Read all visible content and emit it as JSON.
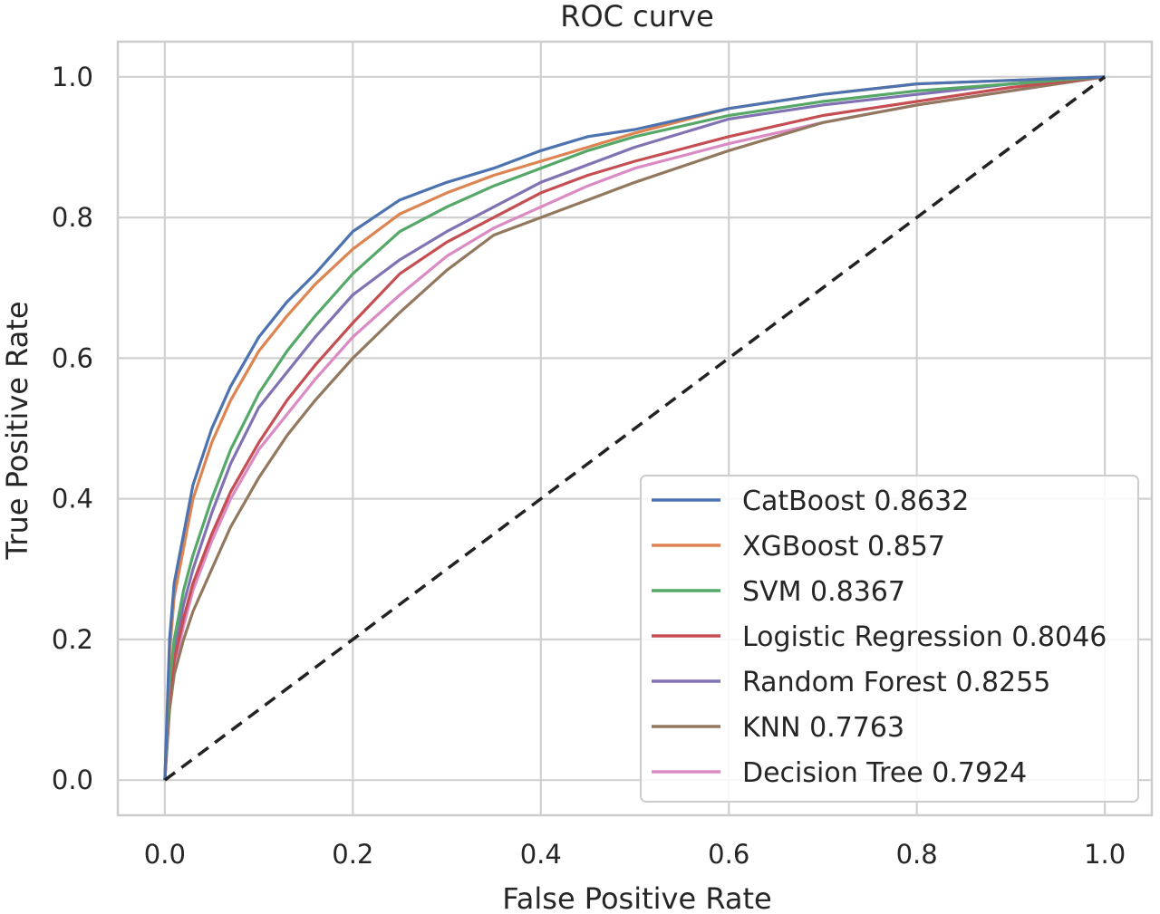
{
  "chart_data": {
    "type": "line",
    "title": "ROC curve",
    "xlabel": "False Positive Rate",
    "ylabel": "True Positive Rate",
    "xlim": [
      -0.05,
      1.05
    ],
    "ylim": [
      -0.05,
      1.05
    ],
    "xticks": [
      0.0,
      0.2,
      0.4,
      0.6,
      0.8,
      1.0
    ],
    "yticks": [
      0.0,
      0.2,
      0.4,
      0.6,
      0.8,
      1.0
    ],
    "xtick_labels": [
      "0.0",
      "0.2",
      "0.4",
      "0.6",
      "0.8",
      "1.0"
    ],
    "ytick_labels": [
      "0.0",
      "0.2",
      "0.4",
      "0.6",
      "0.8",
      "1.0"
    ],
    "grid": true,
    "legend_position": "lower-right",
    "series": [
      {
        "name": "CatBoost 0.8632",
        "color": "#4c72b0",
        "x": [
          0,
          0.005,
          0.01,
          0.02,
          0.03,
          0.05,
          0.07,
          0.1,
          0.13,
          0.16,
          0.2,
          0.25,
          0.3,
          0.35,
          0.4,
          0.45,
          0.5,
          0.6,
          0.7,
          0.8,
          0.9,
          1.0
        ],
        "y": [
          0,
          0.2,
          0.28,
          0.35,
          0.42,
          0.5,
          0.56,
          0.63,
          0.68,
          0.72,
          0.78,
          0.825,
          0.85,
          0.87,
          0.895,
          0.915,
          0.925,
          0.955,
          0.975,
          0.99,
          0.995,
          1.0
        ]
      },
      {
        "name": "XGBoost 0.857",
        "color": "#dd8452",
        "x": [
          0,
          0.005,
          0.01,
          0.02,
          0.03,
          0.05,
          0.07,
          0.1,
          0.13,
          0.16,
          0.2,
          0.25,
          0.3,
          0.35,
          0.4,
          0.45,
          0.5,
          0.6,
          0.7,
          0.8,
          0.9,
          1.0
        ],
        "y": [
          0,
          0.18,
          0.26,
          0.33,
          0.4,
          0.48,
          0.54,
          0.61,
          0.66,
          0.705,
          0.755,
          0.805,
          0.835,
          0.86,
          0.88,
          0.9,
          0.92,
          0.955,
          0.975,
          0.99,
          0.995,
          1.0
        ]
      },
      {
        "name": "SVM 0.8367",
        "color": "#55a868",
        "x": [
          0,
          0.005,
          0.01,
          0.02,
          0.03,
          0.05,
          0.07,
          0.1,
          0.13,
          0.16,
          0.2,
          0.25,
          0.3,
          0.35,
          0.4,
          0.45,
          0.5,
          0.6,
          0.7,
          0.8,
          0.9,
          1.0
        ],
        "y": [
          0,
          0.14,
          0.2,
          0.27,
          0.32,
          0.4,
          0.47,
          0.55,
          0.61,
          0.66,
          0.72,
          0.78,
          0.815,
          0.845,
          0.87,
          0.895,
          0.915,
          0.945,
          0.965,
          0.98,
          0.99,
          1.0
        ]
      },
      {
        "name": "Logistic Regression 0.8046",
        "color": "#c44e52",
        "x": [
          0,
          0.005,
          0.01,
          0.02,
          0.03,
          0.05,
          0.07,
          0.1,
          0.13,
          0.16,
          0.2,
          0.25,
          0.3,
          0.35,
          0.4,
          0.45,
          0.5,
          0.6,
          0.7,
          0.8,
          0.9,
          1.0
        ],
        "y": [
          0,
          0.12,
          0.17,
          0.23,
          0.28,
          0.35,
          0.41,
          0.48,
          0.54,
          0.59,
          0.65,
          0.72,
          0.765,
          0.8,
          0.835,
          0.86,
          0.88,
          0.915,
          0.945,
          0.965,
          0.985,
          1.0
        ]
      },
      {
        "name": "Random Forest 0.8255",
        "color": "#8172b3",
        "x": [
          0,
          0.005,
          0.01,
          0.02,
          0.03,
          0.05,
          0.07,
          0.1,
          0.13,
          0.16,
          0.2,
          0.25,
          0.3,
          0.35,
          0.4,
          0.45,
          0.5,
          0.6,
          0.7,
          0.8,
          0.9,
          1.0
        ],
        "y": [
          0,
          0.13,
          0.18,
          0.25,
          0.3,
          0.38,
          0.45,
          0.53,
          0.58,
          0.63,
          0.69,
          0.74,
          0.78,
          0.815,
          0.85,
          0.875,
          0.9,
          0.94,
          0.96,
          0.975,
          0.99,
          1.0
        ]
      },
      {
        "name": "KNN 0.7763",
        "color": "#937860",
        "x": [
          0,
          0.005,
          0.01,
          0.02,
          0.03,
          0.05,
          0.07,
          0.1,
          0.13,
          0.16,
          0.2,
          0.25,
          0.3,
          0.35,
          0.4,
          0.45,
          0.5,
          0.6,
          0.7,
          0.8,
          0.9,
          1.0
        ],
        "y": [
          0,
          0.1,
          0.15,
          0.2,
          0.24,
          0.3,
          0.36,
          0.43,
          0.49,
          0.54,
          0.6,
          0.665,
          0.725,
          0.775,
          0.8,
          0.825,
          0.85,
          0.895,
          0.935,
          0.96,
          0.98,
          1.0
        ]
      },
      {
        "name": "Decision Tree 0.7924",
        "color": "#da8bc3",
        "x": [
          0,
          0.005,
          0.01,
          0.02,
          0.03,
          0.05,
          0.07,
          0.1,
          0.13,
          0.16,
          0.2,
          0.25,
          0.3,
          0.35,
          0.4,
          0.45,
          0.5,
          0.6,
          0.7,
          0.8,
          0.9,
          1.0
        ],
        "y": [
          0,
          0.11,
          0.16,
          0.22,
          0.27,
          0.34,
          0.4,
          0.47,
          0.52,
          0.57,
          0.63,
          0.69,
          0.745,
          0.785,
          0.815,
          0.845,
          0.87,
          0.905,
          0.935,
          0.96,
          0.98,
          1.0
        ]
      }
    ],
    "reference_line": {
      "x": [
        0,
        1
      ],
      "y": [
        0,
        1
      ],
      "style": "dashed",
      "color": "#222222"
    }
  }
}
